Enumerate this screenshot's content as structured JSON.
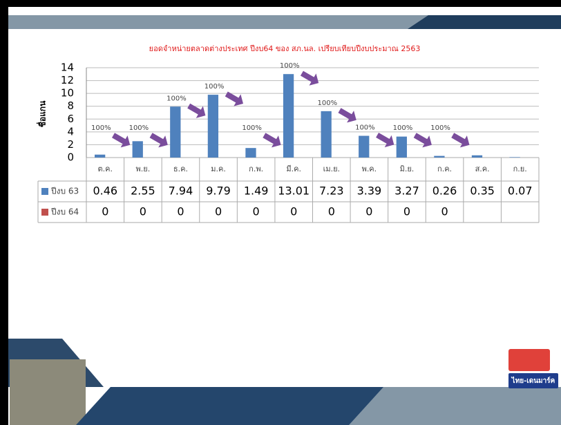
{
  "chart_data": {
    "type": "bar",
    "title": "ยอดจำหน่ายตลาดต่างประเทศ ปีงบ64 ของ สภ.นล. เปรียบเทียบปีงบประมาณ 2563",
    "y_label": "ชื่อแกน",
    "categories": [
      "ต.ค.",
      "พ.ย.",
      "ธ.ค.",
      "ม.ค.",
      "ก.พ.",
      "มี.ค.",
      "เม.ย.",
      "พ.ค.",
      "มิ.ย.",
      "ก.ค.",
      "ส.ค.",
      "ก.ย."
    ],
    "series": [
      {
        "name": "ปีงบ 63",
        "color": "#4f81bd",
        "values": [
          0.46,
          2.55,
          7.94,
          9.79,
          1.49,
          13.01,
          7.23,
          3.39,
          3.27,
          0.26,
          0.35,
          0.07
        ]
      },
      {
        "name": "ปีงบ 64",
        "color": "#c0504d",
        "values": [
          0,
          0,
          0,
          0,
          0,
          0,
          0,
          0,
          0,
          0,
          null,
          null
        ]
      }
    ],
    "annotations": [
      "100%",
      "100%",
      "100%",
      "100%",
      "100%",
      "100%",
      "100%",
      "100%",
      "100%",
      "100%"
    ],
    "ylim": [
      0,
      14
    ],
    "yticks": [
      0,
      2,
      4,
      6,
      8,
      10,
      12,
      14
    ],
    "grid": true,
    "data_table": true
  },
  "logo": {
    "text": "ไทย-เดนมาร์ค"
  }
}
